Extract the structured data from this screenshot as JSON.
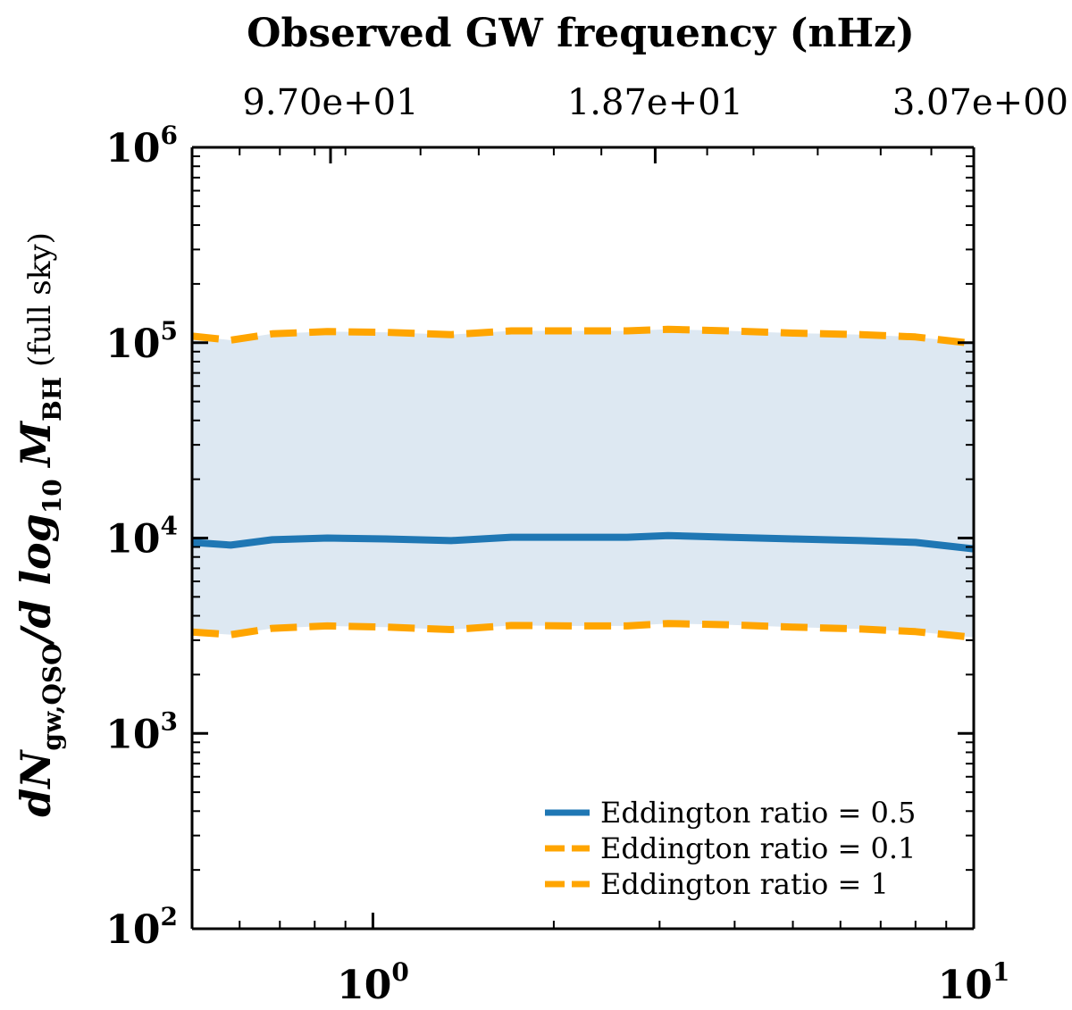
{
  "chart_data": {
    "type": "line",
    "title": "Observed GW frequency (nHz)",
    "xscale": "log",
    "yscale": "log",
    "xlim": [
      0.5,
      10
    ],
    "ylim": [
      100,
      1000000
    ],
    "x_tick_values": [
      1,
      10
    ],
    "x_tick_labels": [
      {
        "base": "10",
        "exp": "0"
      },
      {
        "base": "10",
        "exp": "1"
      }
    ],
    "y_tick_values": [
      100,
      1000,
      10000,
      100000,
      1000000
    ],
    "y_tick_labels": [
      {
        "base": "10",
        "exp": "2"
      },
      {
        "base": "10",
        "exp": "3"
      },
      {
        "base": "10",
        "exp": "4"
      },
      {
        "base": "10",
        "exp": "5"
      },
      {
        "base": "10",
        "exp": "6"
      }
    ],
    "top_axis": {
      "label": "Observed GW frequency (nHz)",
      "tick_x": [
        0.85,
        2.95,
        10
      ],
      "tick_labels": [
        "9.70e+01",
        "1.87e+01",
        "3.07e+00"
      ]
    },
    "ylabel": {
      "main": "dN",
      "sub1": "gw,QSO",
      "mid": "/d log",
      "sub2": "10",
      "m": "M",
      "sub3": "BH",
      "suffix": "(full sky)"
    },
    "x": [
      0.5,
      0.58,
      0.68,
      0.84,
      1.05,
      1.35,
      1.7,
      2.2,
      2.65,
      3.1,
      3.9,
      5.0,
      6.5,
      8.0,
      10.0
    ],
    "series": [
      {
        "name": "Eddington ratio = 0.5",
        "color": "#1f77b4",
        "style": "solid",
        "values": [
          9500,
          9200,
          9800,
          10000,
          9900,
          9700,
          10100,
          10100,
          10100,
          10300,
          10100,
          9900,
          9700,
          9500,
          8800
        ]
      },
      {
        "name": "Eddington ratio = 0.1",
        "color": "#ffa500",
        "style": "dashed",
        "values": [
          108000,
          103000,
          111000,
          114000,
          113000,
          110000,
          115000,
          115000,
          115000,
          117000,
          115000,
          112000,
          110000,
          107000,
          99000
        ]
      },
      {
        "name": "Eddington ratio = 1",
        "color": "#ffa500",
        "style": "dashed",
        "values": [
          3300,
          3200,
          3450,
          3550,
          3500,
          3400,
          3570,
          3550,
          3550,
          3650,
          3600,
          3500,
          3420,
          3320,
          3100
        ]
      }
    ],
    "fill_between": {
      "lower_series": 2,
      "upper_series": 1,
      "color": "#dde8f2"
    },
    "legend_placement": "bottom-right"
  }
}
